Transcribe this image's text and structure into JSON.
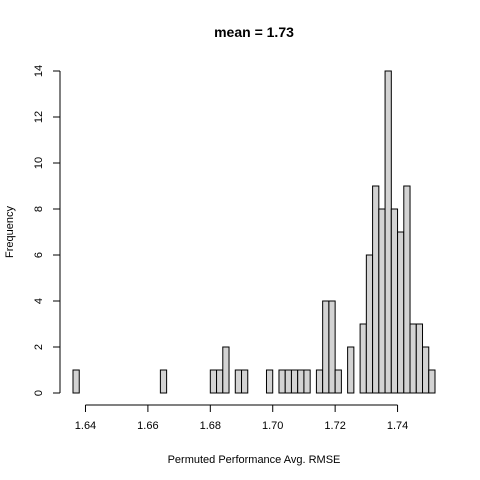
{
  "chart_data": {
    "type": "bar",
    "title": "mean = 1.73",
    "xlabel": "Permuted Performance Avg. RMSE",
    "ylabel": "Frequency",
    "bin_width": 0.002,
    "xlim": [
      1.636,
      1.752
    ],
    "ylim": [
      0,
      14
    ],
    "x_ticks": [
      1.64,
      1.66,
      1.68,
      1.7,
      1.72,
      1.74
    ],
    "x_tick_labels": [
      "1.64",
      "1.66",
      "1.68",
      "1.70",
      "1.72",
      "1.74"
    ],
    "y_ticks": [
      0,
      2,
      4,
      6,
      8,
      10,
      12,
      14
    ],
    "y_tick_labels": [
      "0",
      "2",
      "4",
      "6",
      "8",
      "10",
      "12",
      "14"
    ],
    "grid": false,
    "bin_starts": [
      1.636,
      1.664,
      1.68,
      1.682,
      1.684,
      1.688,
      1.69,
      1.698,
      1.702,
      1.704,
      1.706,
      1.708,
      1.71,
      1.714,
      1.716,
      1.718,
      1.72,
      1.724,
      1.728,
      1.73,
      1.732,
      1.734,
      1.736,
      1.738,
      1.74,
      1.742,
      1.744,
      1.746,
      1.748,
      1.75
    ],
    "counts": [
      1,
      1,
      1,
      1,
      2,
      1,
      1,
      1,
      1,
      1,
      1,
      1,
      1,
      1,
      4,
      4,
      1,
      2,
      3,
      6,
      9,
      8,
      14,
      8,
      7,
      9,
      3,
      3,
      2,
      1
    ]
  }
}
